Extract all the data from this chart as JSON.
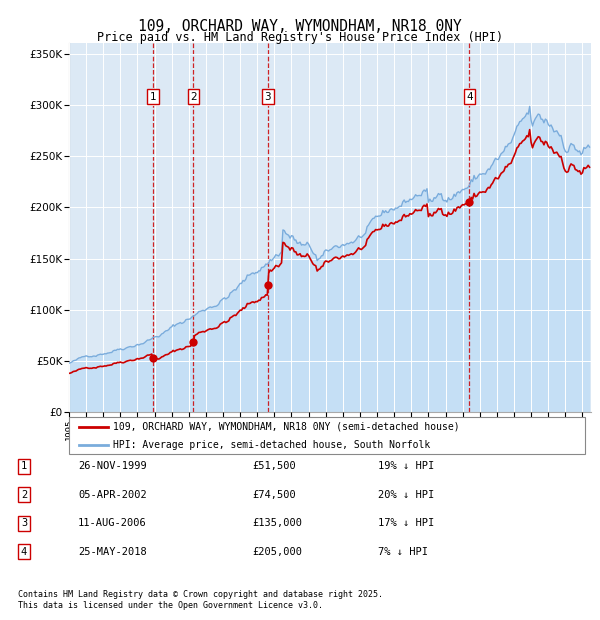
{
  "title": "109, ORCHARD WAY, WYMONDHAM, NR18 0NY",
  "subtitle": "Price paid vs. HM Land Registry's House Price Index (HPI)",
  "legend_line1": "109, ORCHARD WAY, WYMONDHAM, NR18 0NY (semi-detached house)",
  "legend_line2": "HPI: Average price, semi-detached house, South Norfolk",
  "transactions": [
    {
      "num": 1,
      "date": "26-NOV-1999",
      "price": 51500,
      "pct": "19% ↓ HPI",
      "year": 1999.9
    },
    {
      "num": 2,
      "date": "05-APR-2002",
      "price": 74500,
      "pct": "20% ↓ HPI",
      "year": 2002.27
    },
    {
      "num": 3,
      "date": "11-AUG-2006",
      "price": 135000,
      "pct": "17% ↓ HPI",
      "year": 2006.62
    },
    {
      "num": 4,
      "date": "25-MAY-2018",
      "price": 205000,
      "pct": "7% ↓ HPI",
      "year": 2018.4
    }
  ],
  "footnote1": "Contains HM Land Registry data © Crown copyright and database right 2025.",
  "footnote2": "This data is licensed under the Open Government Licence v3.0.",
  "price_color": "#cc0000",
  "hpi_color": "#7aacdc",
  "hpi_fill_color": "#c5dff5",
  "background_color": "#dce9f5",
  "ylim": [
    0,
    360000
  ],
  "xlim_start": 1995,
  "xlim_end": 2025.5
}
